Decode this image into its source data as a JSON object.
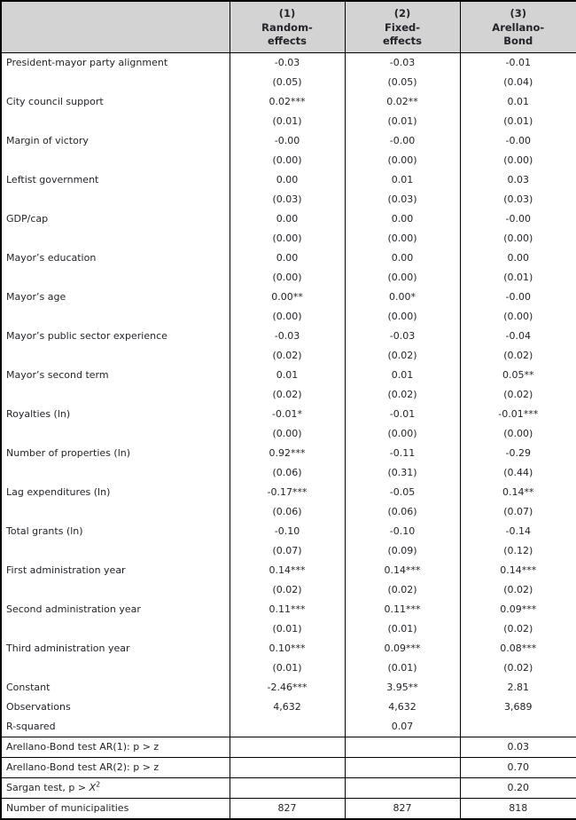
{
  "table": {
    "header": {
      "columns": [
        {
          "number": "(1)",
          "name": "Random-\neffects"
        },
        {
          "number": "(2)",
          "name": "Fixed-\neffects"
        },
        {
          "number": "(3)",
          "name": "Arellano-\nBond"
        }
      ]
    },
    "variables": [
      {
        "label": "President-mayor party alignment",
        "coefs": [
          "-0.03",
          "-0.03",
          "-0.01"
        ],
        "se": [
          "(0.05)",
          "(0.05)",
          "(0.04)"
        ]
      },
      {
        "label": "City council support",
        "coefs": [
          "0.02***",
          "0.02**",
          "0.01"
        ],
        "se": [
          "(0.01)",
          "(0.01)",
          "(0.01)"
        ]
      },
      {
        "label": "Margin of victory",
        "coefs": [
          "-0.00",
          "-0.00",
          "-0.00"
        ],
        "se": [
          "(0.00)",
          "(0.00)",
          "(0.00)"
        ]
      },
      {
        "label": "Leftist government",
        "coefs": [
          "0.00",
          "0.01",
          "0.03"
        ],
        "se": [
          "(0.03)",
          "(0.03)",
          "(0.03)"
        ]
      },
      {
        "label": "GDP/cap",
        "coefs": [
          "0.00",
          "0.00",
          "-0.00"
        ],
        "se": [
          "(0.00)",
          "(0.00)",
          "(0.00)"
        ]
      },
      {
        "label": "Mayor’s education",
        "coefs": [
          "0.00",
          "0.00",
          "0.00"
        ],
        "se": [
          "(0.00)",
          "(0.00)",
          "(0.01)"
        ]
      },
      {
        "label": "Mayor’s age",
        "coefs": [
          "0.00**",
          "0.00*",
          "-0.00"
        ],
        "se": [
          "(0.00)",
          "(0.00)",
          "(0.00)"
        ]
      },
      {
        "label": "Mayor’s public sector experience",
        "coefs": [
          "-0.03",
          "-0.03",
          "-0.04"
        ],
        "se": [
          "(0.02)",
          "(0.02)",
          "(0.02)"
        ]
      },
      {
        "label": "Mayor’s second term",
        "coefs": [
          "0.01",
          "0.01",
          "0.05**"
        ],
        "se": [
          "(0.02)",
          "(0.02)",
          "(0.02)"
        ]
      },
      {
        "label": "Royalties (ln)",
        "coefs": [
          "-0.01*",
          "-0.01",
          "-0.01***"
        ],
        "se": [
          "(0.00)",
          "(0.00)",
          "(0.00)"
        ]
      },
      {
        "label": "Number of properties (ln)",
        "coefs": [
          "0.92***",
          "-0.11",
          "-0.29"
        ],
        "se": [
          "(0.06)",
          "(0.31)",
          "(0.44)"
        ]
      },
      {
        "label": "Lag expenditures (ln)",
        "coefs": [
          "-0.17***",
          "-0.05",
          "0.14**"
        ],
        "se": [
          "(0.06)",
          "(0.06)",
          "(0.07)"
        ]
      },
      {
        "label": "Total grants (ln)",
        "coefs": [
          "-0.10",
          "-0.10",
          "-0.14"
        ],
        "se": [
          "(0.07)",
          "(0.09)",
          "(0.12)"
        ]
      },
      {
        "label": "First administration year",
        "coefs": [
          "0.14***",
          "0.14***",
          "0.14***"
        ],
        "se": [
          "(0.02)",
          "(0.02)",
          "(0.02)"
        ]
      },
      {
        "label": "Second administration year",
        "coefs": [
          "0.11***",
          "0.11***",
          "0.09***"
        ],
        "se": [
          "(0.01)",
          "(0.01)",
          "(0.02)"
        ]
      },
      {
        "label": "Third administration year",
        "coefs": [
          "0.10***",
          "0.09***",
          "0.08***"
        ],
        "se": [
          "(0.01)",
          "(0.01)",
          "(0.02)"
        ]
      }
    ],
    "stats": [
      {
        "label": "Constant",
        "values": [
          "-2.46***",
          "3.95**",
          "2.81"
        ]
      },
      {
        "label": "Observations",
        "values": [
          "4,632",
          "4,632",
          "3,689"
        ]
      },
      {
        "label": "R-squared",
        "values": [
          "",
          "0.07",
          ""
        ]
      }
    ],
    "tests": [
      {
        "label": "Arellano-Bond test AR(1): p > z",
        "values": [
          "",
          "",
          "0.03"
        ]
      },
      {
        "label": "Arellano-Bond test AR(2): p > z",
        "values": [
          "",
          "",
          "0.70"
        ]
      },
      {
        "label_prefix": "Sargan test, p > ",
        "label_stat": "X",
        "label_sup": "2",
        "values": [
          "",
          "",
          "0.20"
        ]
      },
      {
        "label": "Number of municipalities",
        "values": [
          "827",
          "827",
          "818"
        ]
      }
    ],
    "colors": {
      "header_bg": "#d3d3d3",
      "border": "#000000",
      "text": "#232329"
    }
  }
}
